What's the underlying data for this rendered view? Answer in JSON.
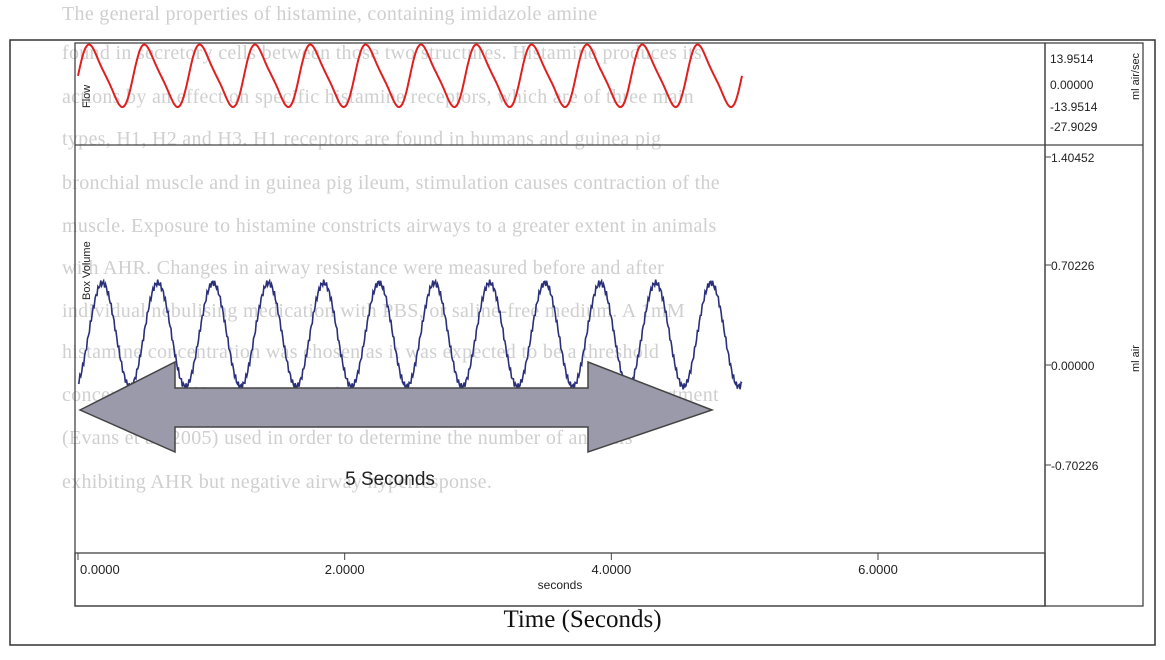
{
  "background_text": [
    "The general properties of histamine, containing imidazole amine",
    "found in secretory cells between those two structures. Histamine produces its",
    "actions by an effect on specific histamine receptors, which are of three main",
    "types, H1, H2 and H3. H1 receptors are found in humans and guinea pig",
    "bronchial muscle and in guinea pig ileum, stimulation causes contraction of the",
    "muscle. Exposure to histamine constricts airways to a greater extent in animals",
    "with AHR. Changes in airway resistance were measured before and after",
    "individual nebulising medication with PBS, or saline-free medium. A 1mM",
    "histamine concentration was chosen as it was expected to be a threshold",
    "concentration of histamine, based on previous investigations in this department",
    "(Evans et al. 2005) used in order to determine the number of animals",
    "exhibiting AHR but negative airway hyperresponse."
  ],
  "chart_data": [
    {
      "type": "line",
      "name": "flow-panel",
      "ylabel": "Flow",
      "unit": "ml air/sec",
      "y_ticks": [
        "13.9514",
        "0.00000",
        "-13.9514",
        "-27.9029"
      ],
      "ylim": [
        -27.9029,
        13.9514
      ],
      "color": "#e02020",
      "cycles": 12,
      "x_range": [
        0,
        4.98
      ],
      "amplitude": 12.5,
      "offset": 0.8
    },
    {
      "type": "line",
      "name": "volume-panel",
      "ylabel": "Box Volume",
      "unit": "ml air",
      "y_ticks": [
        "1.40452",
        "0.70226",
        "0.00000",
        "-0.70226"
      ],
      "ylim": [
        -1.0,
        1.40452
      ],
      "color": "#2a2f7a",
      "cycles": 12,
      "x_range": [
        0,
        4.98
      ],
      "amplitude": 0.32,
      "offset": 0.34,
      "xlabel": "seconds",
      "x_ticks": [
        "0.0000",
        "2.0000",
        "4.0000",
        "6.0000"
      ],
      "xlim": [
        0,
        7.5
      ]
    }
  ],
  "annotation": {
    "label": "5 Seconds"
  },
  "caption": "Time (Seconds)"
}
